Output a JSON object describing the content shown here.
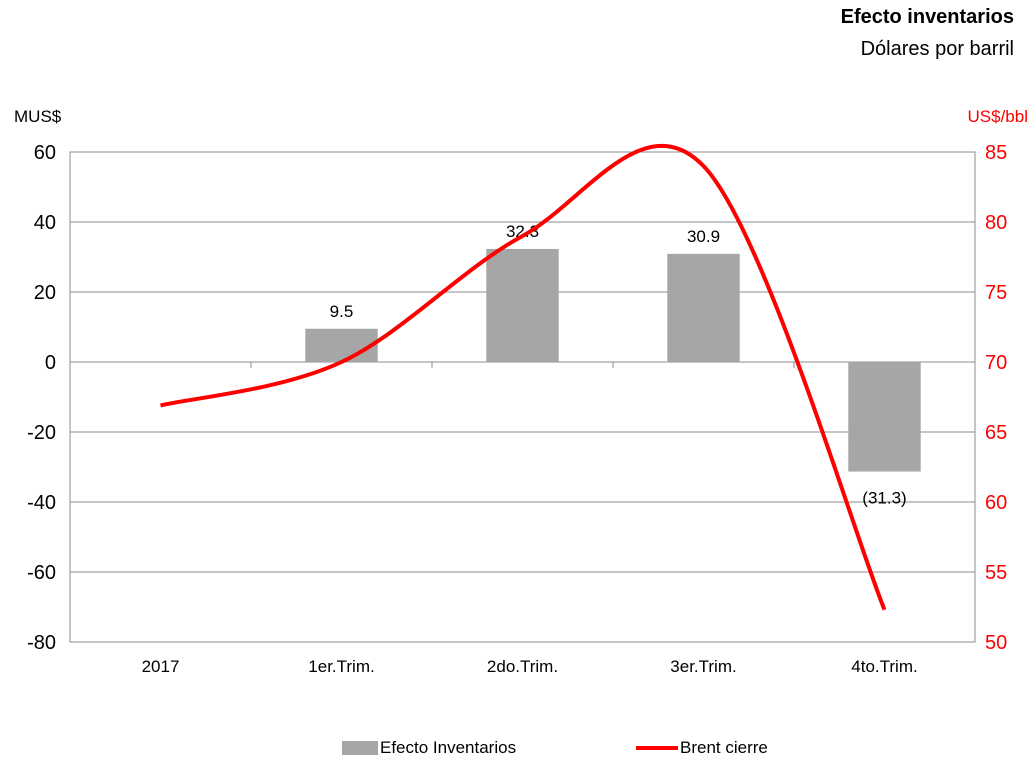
{
  "chart_data": {
    "type": "bar",
    "title": "Efecto inventarios",
    "subtitle": "Dólares por barril",
    "ylabel_left": "MUS$",
    "ylabel_right": "US$/bbl",
    "categories": [
      "2017",
      "1er.Trim.",
      "2do.Trim.",
      "3er.Trim.",
      "4to.Trim."
    ],
    "ylim_left": [
      -80,
      60
    ],
    "yticks_left": [
      60,
      40,
      20,
      0,
      -20,
      -40,
      -60,
      -80
    ],
    "ylim_right": [
      50,
      85
    ],
    "yticks_right": [
      85,
      80,
      75,
      70,
      65,
      60,
      55,
      50
    ],
    "series": [
      {
        "name": "Efecto Inventarios",
        "type": "bar",
        "axis": "left",
        "values": [
          null,
          9.5,
          32.3,
          30.9,
          -31.3
        ],
        "labels": [
          "",
          "9.5",
          "32.3",
          "30.9",
          "(31.3)"
        ],
        "color": "#a6a6a6"
      },
      {
        "name": "Brent cierre",
        "type": "line",
        "axis": "right",
        "values": [
          66.9,
          70.0,
          79.0,
          84.0,
          52.3
        ],
        "color": "#ff0000"
      }
    ],
    "legend": "bottom",
    "grid": true
  }
}
